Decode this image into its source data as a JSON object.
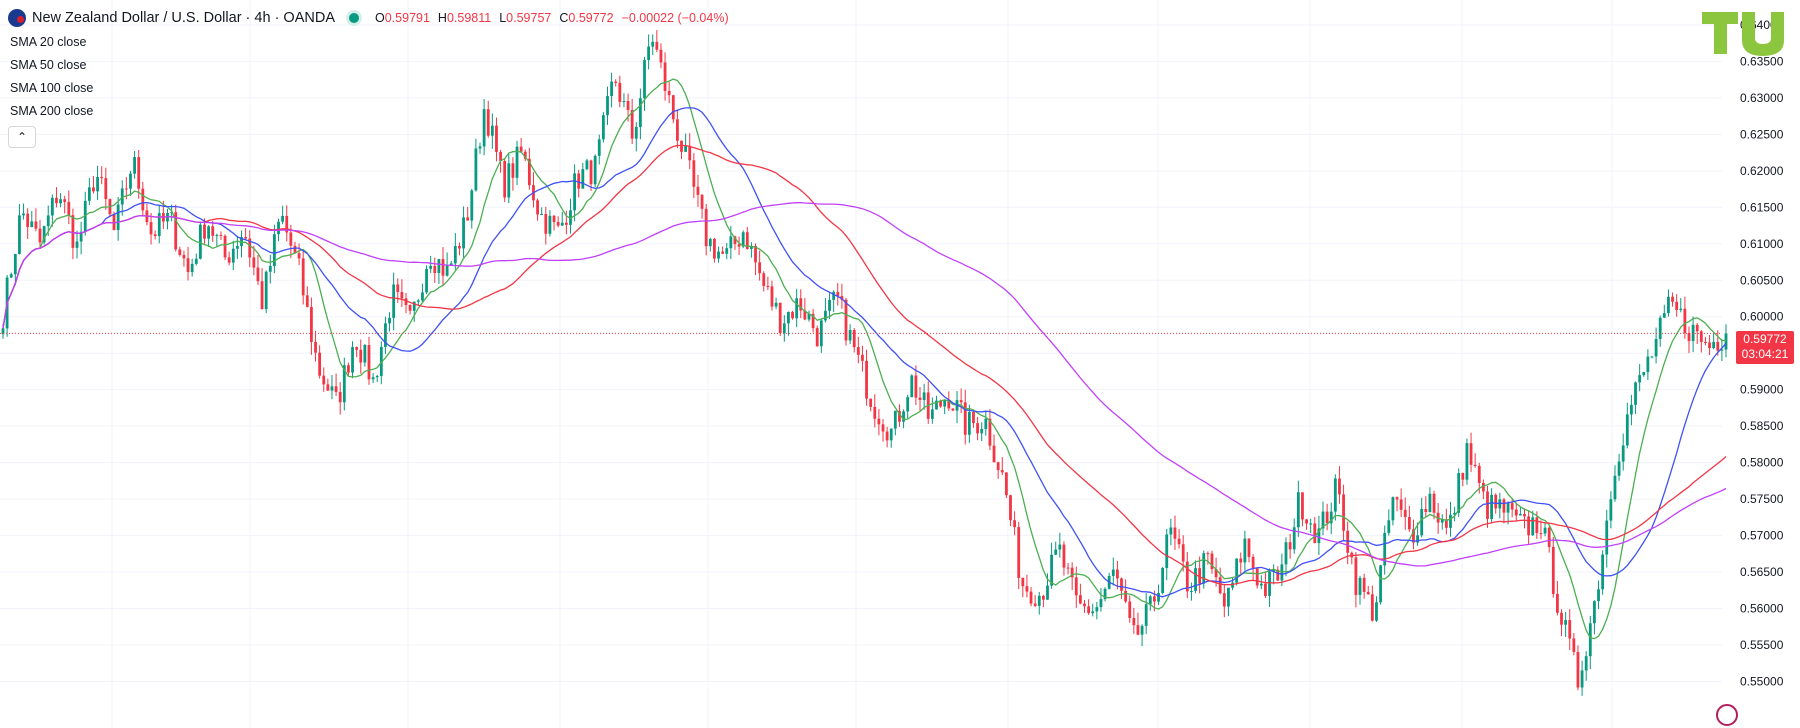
{
  "header": {
    "symbol_title": "New Zealand Dollar / U.S. Dollar · 4h · OANDA",
    "ohlc": [
      {
        "key": "O",
        "value": "0.59791"
      },
      {
        "key": "H",
        "value": "0.59811"
      },
      {
        "key": "L",
        "value": "0.59757"
      },
      {
        "key": "C",
        "value": "0.59772"
      }
    ],
    "change": "−0.00022 (−0.04%)"
  },
  "indicators": [
    {
      "label": "SMA 20 close",
      "color": "#4caf50"
    },
    {
      "label": "SMA 50 close",
      "color": "#3f51f5"
    },
    {
      "label": "SMA 100 close",
      "color": "#f23645"
    },
    {
      "label": "SMA 200 close",
      "color": "#c040fb"
    }
  ],
  "collapse_icon": "chevron-up-icon",
  "price_tag": {
    "price": "0.59772",
    "countdown": "03:04:21"
  },
  "colors": {
    "up": "#089981",
    "down": "#f23645",
    "grid": "#f0f3fa",
    "last_price_line": "#f23645"
  },
  "chart_data": {
    "type": "candlestick",
    "title": "New Zealand Dollar / U.S. Dollar · 4h · OANDA",
    "y_ticks": [
      "0.64000",
      "0.63500",
      "0.63000",
      "0.62500",
      "0.62000",
      "0.61500",
      "0.61000",
      "0.60500",
      "0.60000",
      "0.59500",
      "0.59000",
      "0.58500",
      "0.58000",
      "0.57500",
      "0.57000",
      "0.56500",
      "0.56000",
      "0.55500",
      "0.55000"
    ],
    "ylim": [
      0.5465,
      0.6415
    ],
    "last_price": 0.59772,
    "grid": true,
    "path": [
      0.6005,
      0.6145,
      0.61,
      0.6175,
      0.6095,
      0.62,
      0.6115,
      0.6215,
      0.6115,
      0.6135,
      0.606,
      0.6135,
      0.608,
      0.612,
      0.602,
      0.614,
      0.606,
      0.593,
      0.588,
      0.5975,
      0.591,
      0.603,
      0.599,
      0.609,
      0.606,
      0.613,
      0.629,
      0.618,
      0.6225,
      0.614,
      0.6115,
      0.619,
      0.6205,
      0.633,
      0.6245,
      0.639,
      0.629,
      0.62,
      0.6105,
      0.608,
      0.612,
      0.6045,
      0.5995,
      0.602,
      0.5975,
      0.6025,
      0.595,
      0.588,
      0.584,
      0.5915,
      0.586,
      0.5895,
      0.585,
      0.586,
      0.5775,
      0.5635,
      0.562,
      0.568,
      0.56,
      0.56,
      0.565,
      0.5555,
      0.56,
      0.5705,
      0.563,
      0.5665,
      0.56,
      0.569,
      0.5625,
      0.565,
      0.575,
      0.57,
      0.5765,
      0.564,
      0.5595,
      0.575,
      0.57,
      0.5755,
      0.57,
      0.582,
      0.574,
      0.5735,
      0.571,
      0.572,
      0.56,
      0.55,
      0.562,
      0.58,
      0.589,
      0.595,
      0.6015,
      0.5985,
      0.596,
      0.5977
    ],
    "sma_period": [
      20,
      50,
      100,
      200
    ]
  }
}
